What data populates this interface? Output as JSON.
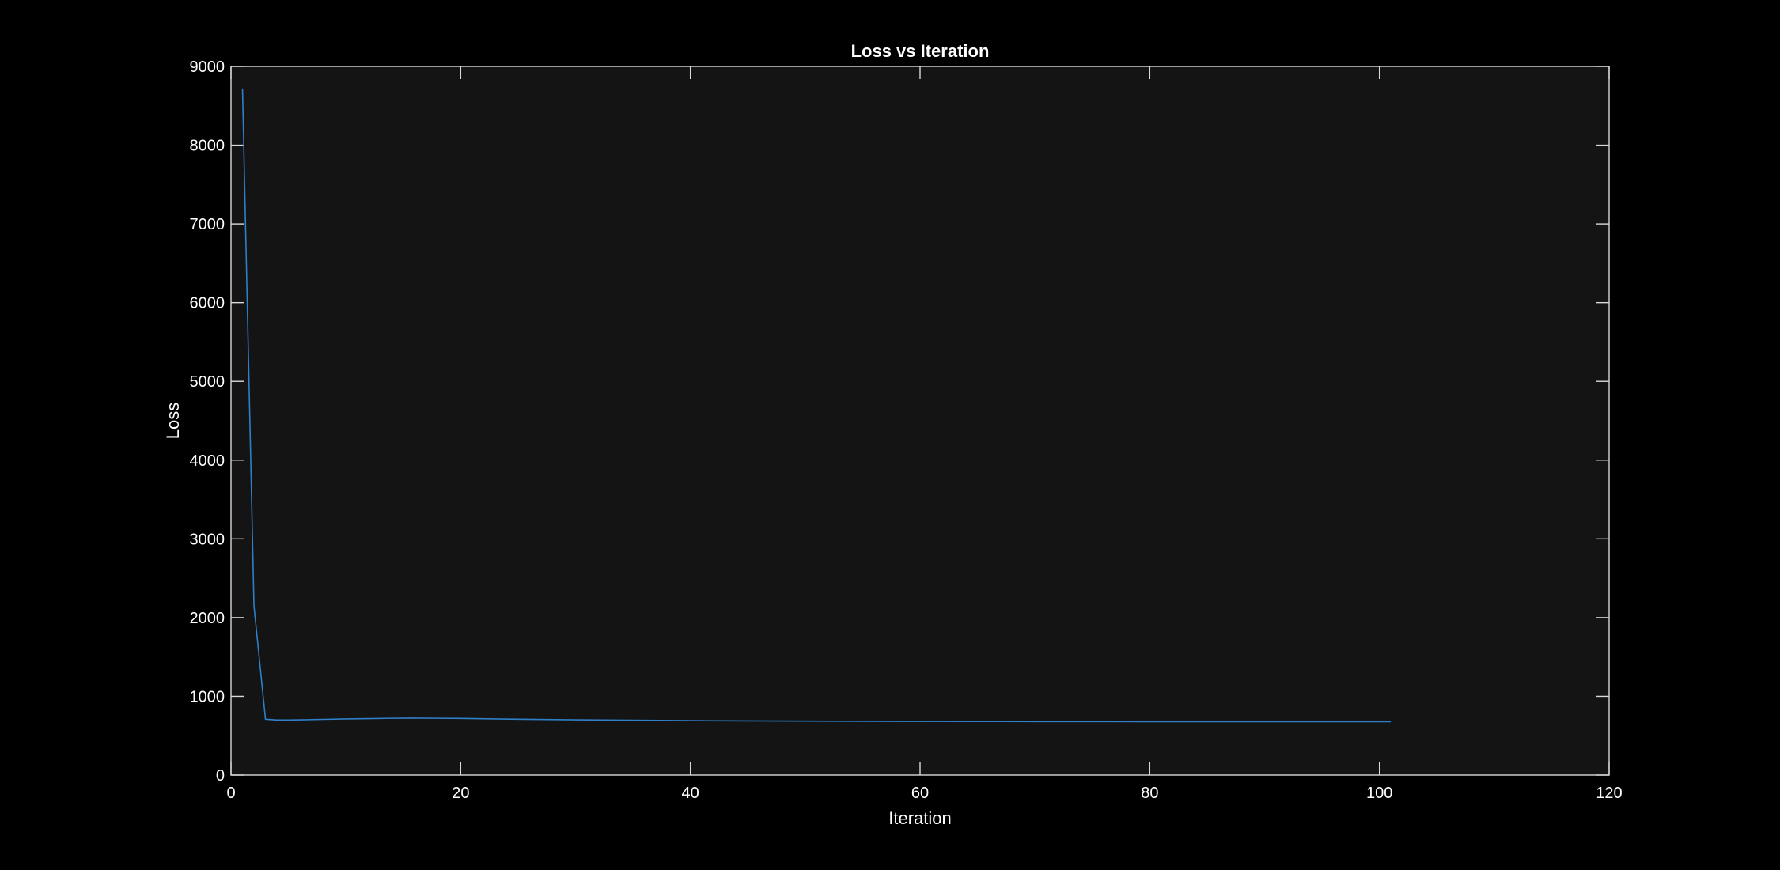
{
  "colors": {
    "figure_background": "#000000",
    "axes_background": "#141414",
    "axes_border": "#d9d9d9",
    "text": "#ffffff",
    "series_line": "#2f7fc9"
  },
  "chart_data": {
    "type": "line",
    "title": "Loss vs Iteration",
    "xlabel": "Iteration",
    "ylabel": "Loss",
    "xlim": [
      0,
      120
    ],
    "ylim": [
      0,
      9000
    ],
    "xticks": [
      0,
      20,
      40,
      60,
      80,
      100,
      120
    ],
    "yticks": [
      0,
      1000,
      2000,
      3000,
      4000,
      5000,
      6000,
      7000,
      8000,
      9000
    ],
    "grid": false,
    "legend": "none",
    "series": [
      {
        "x": [
          1,
          2,
          3,
          4,
          5,
          6,
          8,
          10,
          12,
          14,
          16,
          18,
          20,
          25,
          30,
          35,
          40,
          45,
          50,
          55,
          60,
          65,
          70,
          75,
          80,
          85,
          90,
          95,
          101
        ],
        "y": [
          8720,
          2150,
          710,
          700,
          700,
          702,
          708,
          714,
          718,
          722,
          724,
          722,
          720,
          710,
          702,
          697,
          692,
          689,
          686,
          684,
          682,
          681,
          680,
          680,
          679,
          679,
          679,
          679,
          679
        ]
      }
    ]
  }
}
